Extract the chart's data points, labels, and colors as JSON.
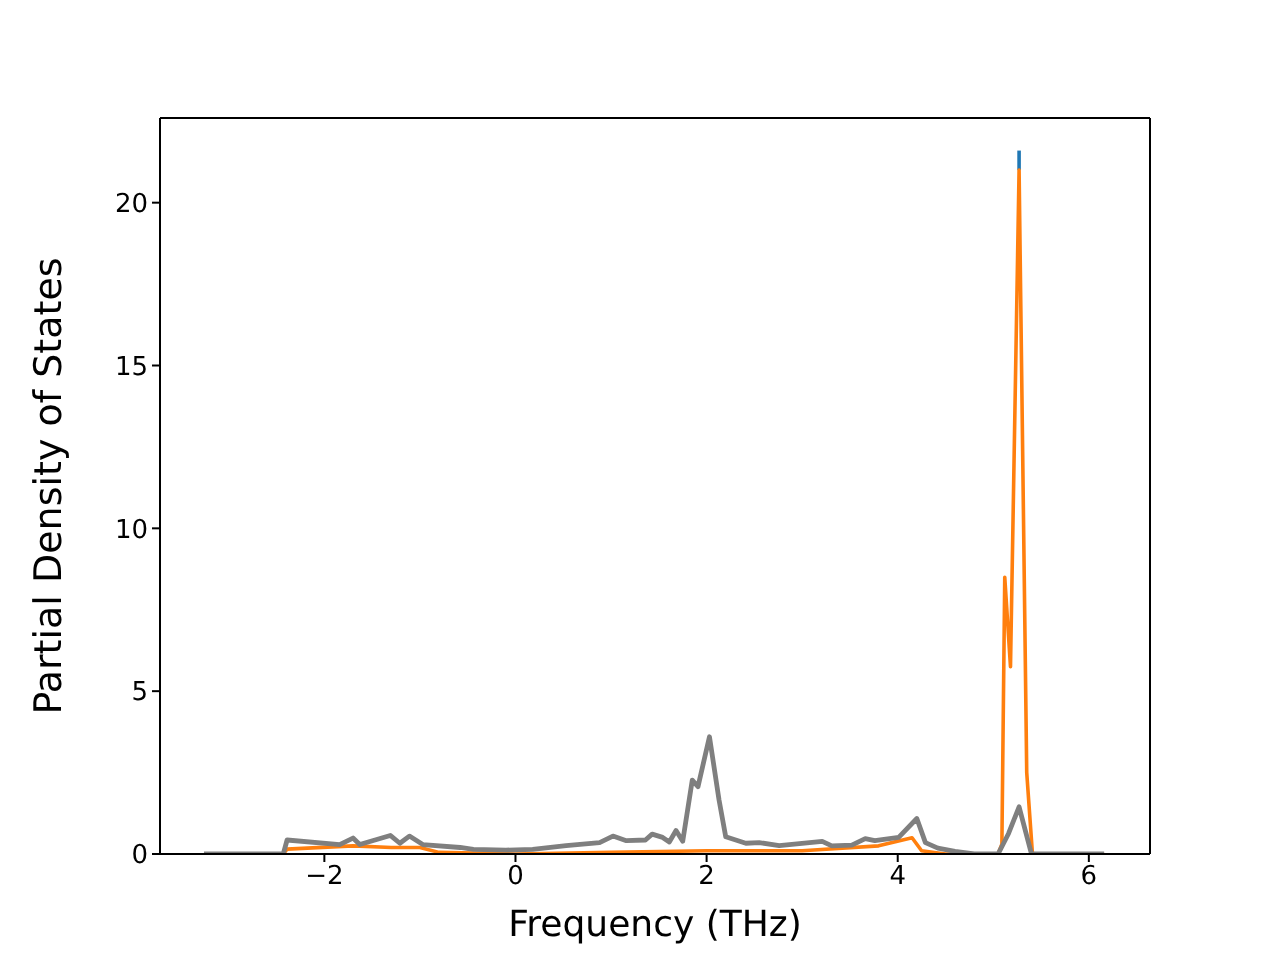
{
  "chart_data": {
    "type": "line",
    "xlabel": "Frequency (THz)",
    "ylabel": "Partial Density of States",
    "xlim": [
      -3.72,
      6.64
    ],
    "ylim": [
      0,
      22.6
    ],
    "xticks": [
      {
        "value": -2,
        "label": "−2"
      },
      0,
      2,
      4,
      6
    ],
    "yticks": [
      0,
      5,
      10,
      15,
      20
    ],
    "grid": false,
    "legend": false,
    "marker": "none",
    "line_style": "solid",
    "series": [
      {
        "color": "#1f77b4",
        "x": [
          5.27,
          5.27
        ],
        "values": [
          21.0,
          21.6
        ]
      },
      {
        "color": "#ff7f0e",
        "x": [
          -3.26,
          -2.43,
          -2.39,
          -1.7,
          -1.3,
          -1.0,
          -0.8,
          0,
          1,
          2,
          3,
          3.8,
          4.15,
          4.25,
          4.5,
          5.05,
          5.09,
          5.12,
          5.18,
          5.27,
          5.35,
          5.41,
          6.16
        ],
        "values": [
          0,
          0,
          0.15,
          0.25,
          0.2,
          0.2,
          0.05,
          0,
          0.05,
          0.1,
          0.1,
          0.25,
          0.5,
          0.1,
          0,
          0,
          0.3,
          8.5,
          5.75,
          21.0,
          2.5,
          0,
          0
        ]
      },
      {
        "color": "#7f7f7f",
        "x": [
          -3.26,
          -2.43,
          -2.39,
          -1.84,
          -1.7,
          -1.63,
          -1.31,
          -1.21,
          -1.11,
          -0.97,
          -0.58,
          -0.44,
          -0.1,
          0.18,
          0.53,
          0.88,
          1.02,
          1.16,
          1.36,
          1.43,
          1.54,
          1.61,
          1.68,
          1.75,
          1.85,
          1.91,
          2.03,
          2.13,
          2.2,
          2.41,
          2.55,
          2.76,
          3.21,
          3.31,
          3.52,
          3.66,
          3.76,
          4.01,
          4.2,
          4.29,
          4.42,
          4.6,
          4.8,
          5.05,
          5.16,
          5.27,
          5.4,
          6.16
        ],
        "values": [
          0,
          0,
          0.43,
          0.29,
          0.49,
          0.29,
          0.57,
          0.33,
          0.55,
          0.29,
          0.2,
          0.14,
          0.12,
          0.14,
          0.26,
          0.35,
          0.55,
          0.41,
          0.43,
          0.61,
          0.51,
          0.37,
          0.72,
          0.39,
          2.27,
          2.07,
          3.6,
          1.66,
          0.53,
          0.33,
          0.35,
          0.26,
          0.39,
          0.25,
          0.27,
          0.47,
          0.41,
          0.51,
          1.09,
          0.35,
          0.18,
          0.08,
          0,
          0,
          0.63,
          1.45,
          0,
          0
        ]
      }
    ]
  }
}
